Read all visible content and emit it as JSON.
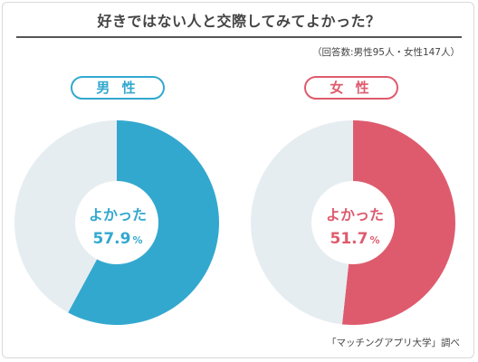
{
  "title": "好きではない人と交際してみてよかった？",
  "note": "（回答数:男性95人・女性147人）",
  "source": "「マッチングアプリ大学」調べ",
  "colors": {
    "male": "#33a8cf",
    "female": "#de5b6e",
    "remainder": "#e6edf1",
    "center": "#ffffff"
  },
  "chart_data": [
    {
      "type": "pie",
      "title": "男 性",
      "slices": [
        {
          "label": "よかった",
          "value": 57.9
        },
        {
          "label": "",
          "value": 42.1
        }
      ],
      "center_label": "よかった",
      "center_value": "57.9",
      "unit": "%"
    },
    {
      "type": "pie",
      "title": "女 性",
      "slices": [
        {
          "label": "よかった",
          "value": 51.7
        },
        {
          "label": "",
          "value": 48.3
        }
      ],
      "center_label": "よかった",
      "center_value": "51.7",
      "unit": "%"
    }
  ]
}
